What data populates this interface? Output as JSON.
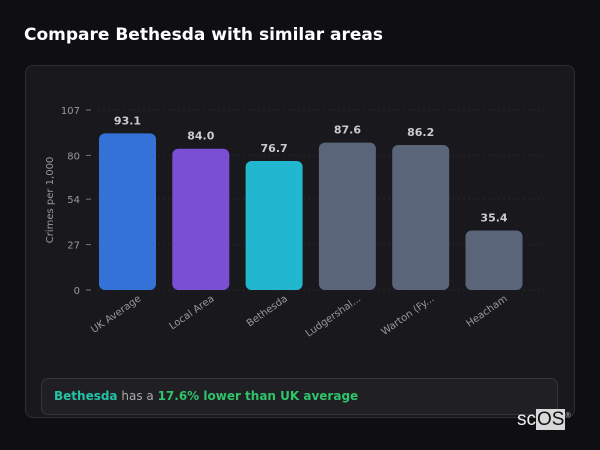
{
  "title": "Compare Bethesda with similar areas",
  "chart_data": {
    "type": "bar",
    "categories": [
      "UK Average",
      "Local Area",
      "Bethesda",
      "Ludgershal...",
      "Warton (Fy...",
      "Heacham"
    ],
    "values": [
      93.1,
      84.0,
      76.7,
      87.6,
      86.2,
      35.4
    ],
    "data_labels": [
      "93.1",
      "84.0",
      "76.7",
      "87.6",
      "86.2",
      "35.4"
    ],
    "colors": [
      "#3572d8",
      "#7b4fd3",
      "#20b7cf",
      "#5a6579",
      "#5a6579",
      "#5a6579"
    ],
    "ylabel": "Crimes per 1,000",
    "xlabel": "",
    "yticks": [
      0,
      27,
      54,
      80,
      107
    ],
    "ylim": [
      0,
      107
    ],
    "grid": true
  },
  "summary": {
    "area": "Bethesda",
    "middle": " has a ",
    "result": "17.6% lower than UK average"
  },
  "logo": {
    "a": "sc",
    "b": "OS",
    "mark": "®"
  }
}
